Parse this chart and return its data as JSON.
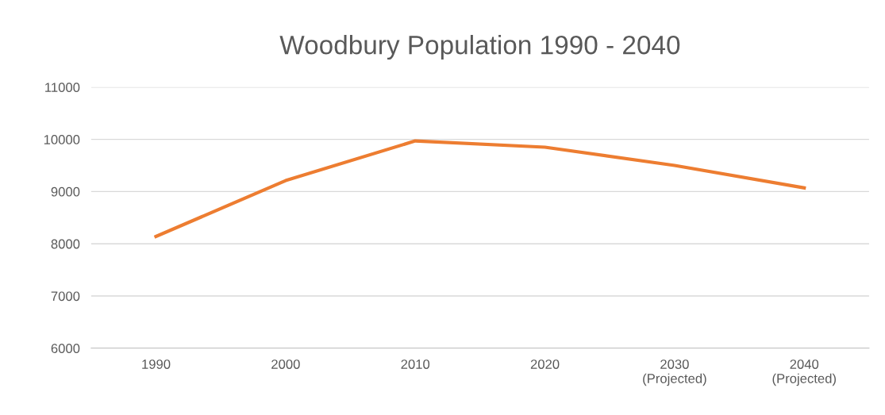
{
  "chart_data": {
    "type": "line",
    "title": "Woodbury Population 1990 - 2040",
    "categories": [
      "1990",
      "2000",
      "2010",
      "2020",
      "2030\n(Projected)",
      "2040\n(Projected)"
    ],
    "series": [
      {
        "color": "#ed7d31",
        "values": [
          8140,
          9210,
          9970,
          9850,
          9500,
          9070
        ]
      }
    ],
    "ylim": [
      6000,
      11000
    ],
    "yticks": [
      6000,
      7000,
      8000,
      9000,
      10000,
      11000
    ],
    "grid": "y",
    "legend": false,
    "marker": "none",
    "line_style": "solid"
  }
}
